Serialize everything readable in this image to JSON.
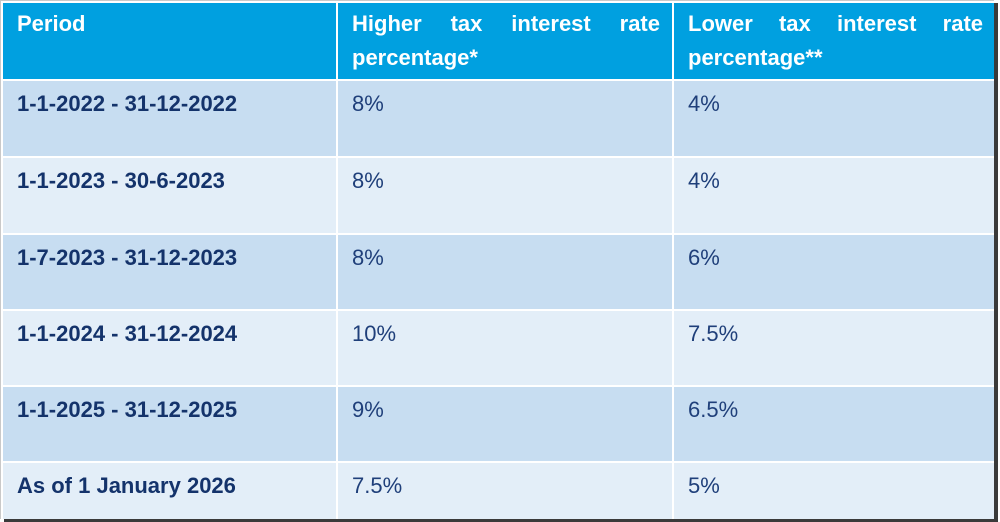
{
  "table": {
    "headers": [
      "Period",
      "Higher tax interest rate percentage*",
      "Lower tax interest rate percentage**"
    ],
    "rows": [
      {
        "period": "1-1-2022 - 31-12-2022",
        "higher": "8%",
        "lower": "4%"
      },
      {
        "period": "1-1-2023 - 30-6-2023",
        "higher": "8%",
        "lower": "4%"
      },
      {
        "period": "1-7-2023 - 31-12-2023",
        "higher": "8%",
        "lower": "6%"
      },
      {
        "period": "1-1-2024 - 31-12-2024",
        "higher": "10%",
        "lower": "7.5%"
      },
      {
        "period": "1-1-2025 - 31-12-2025",
        "higher": "9%",
        "lower": "6.5%"
      },
      {
        "period": "As of 1 January 2026",
        "higher": "7.5%",
        "lower": "5%"
      }
    ]
  },
  "colors": {
    "header_bg": "#00a0e0",
    "row_dark": "#c7ddf1",
    "row_light": "#e3eef8",
    "text": "#1f3f7a"
  }
}
